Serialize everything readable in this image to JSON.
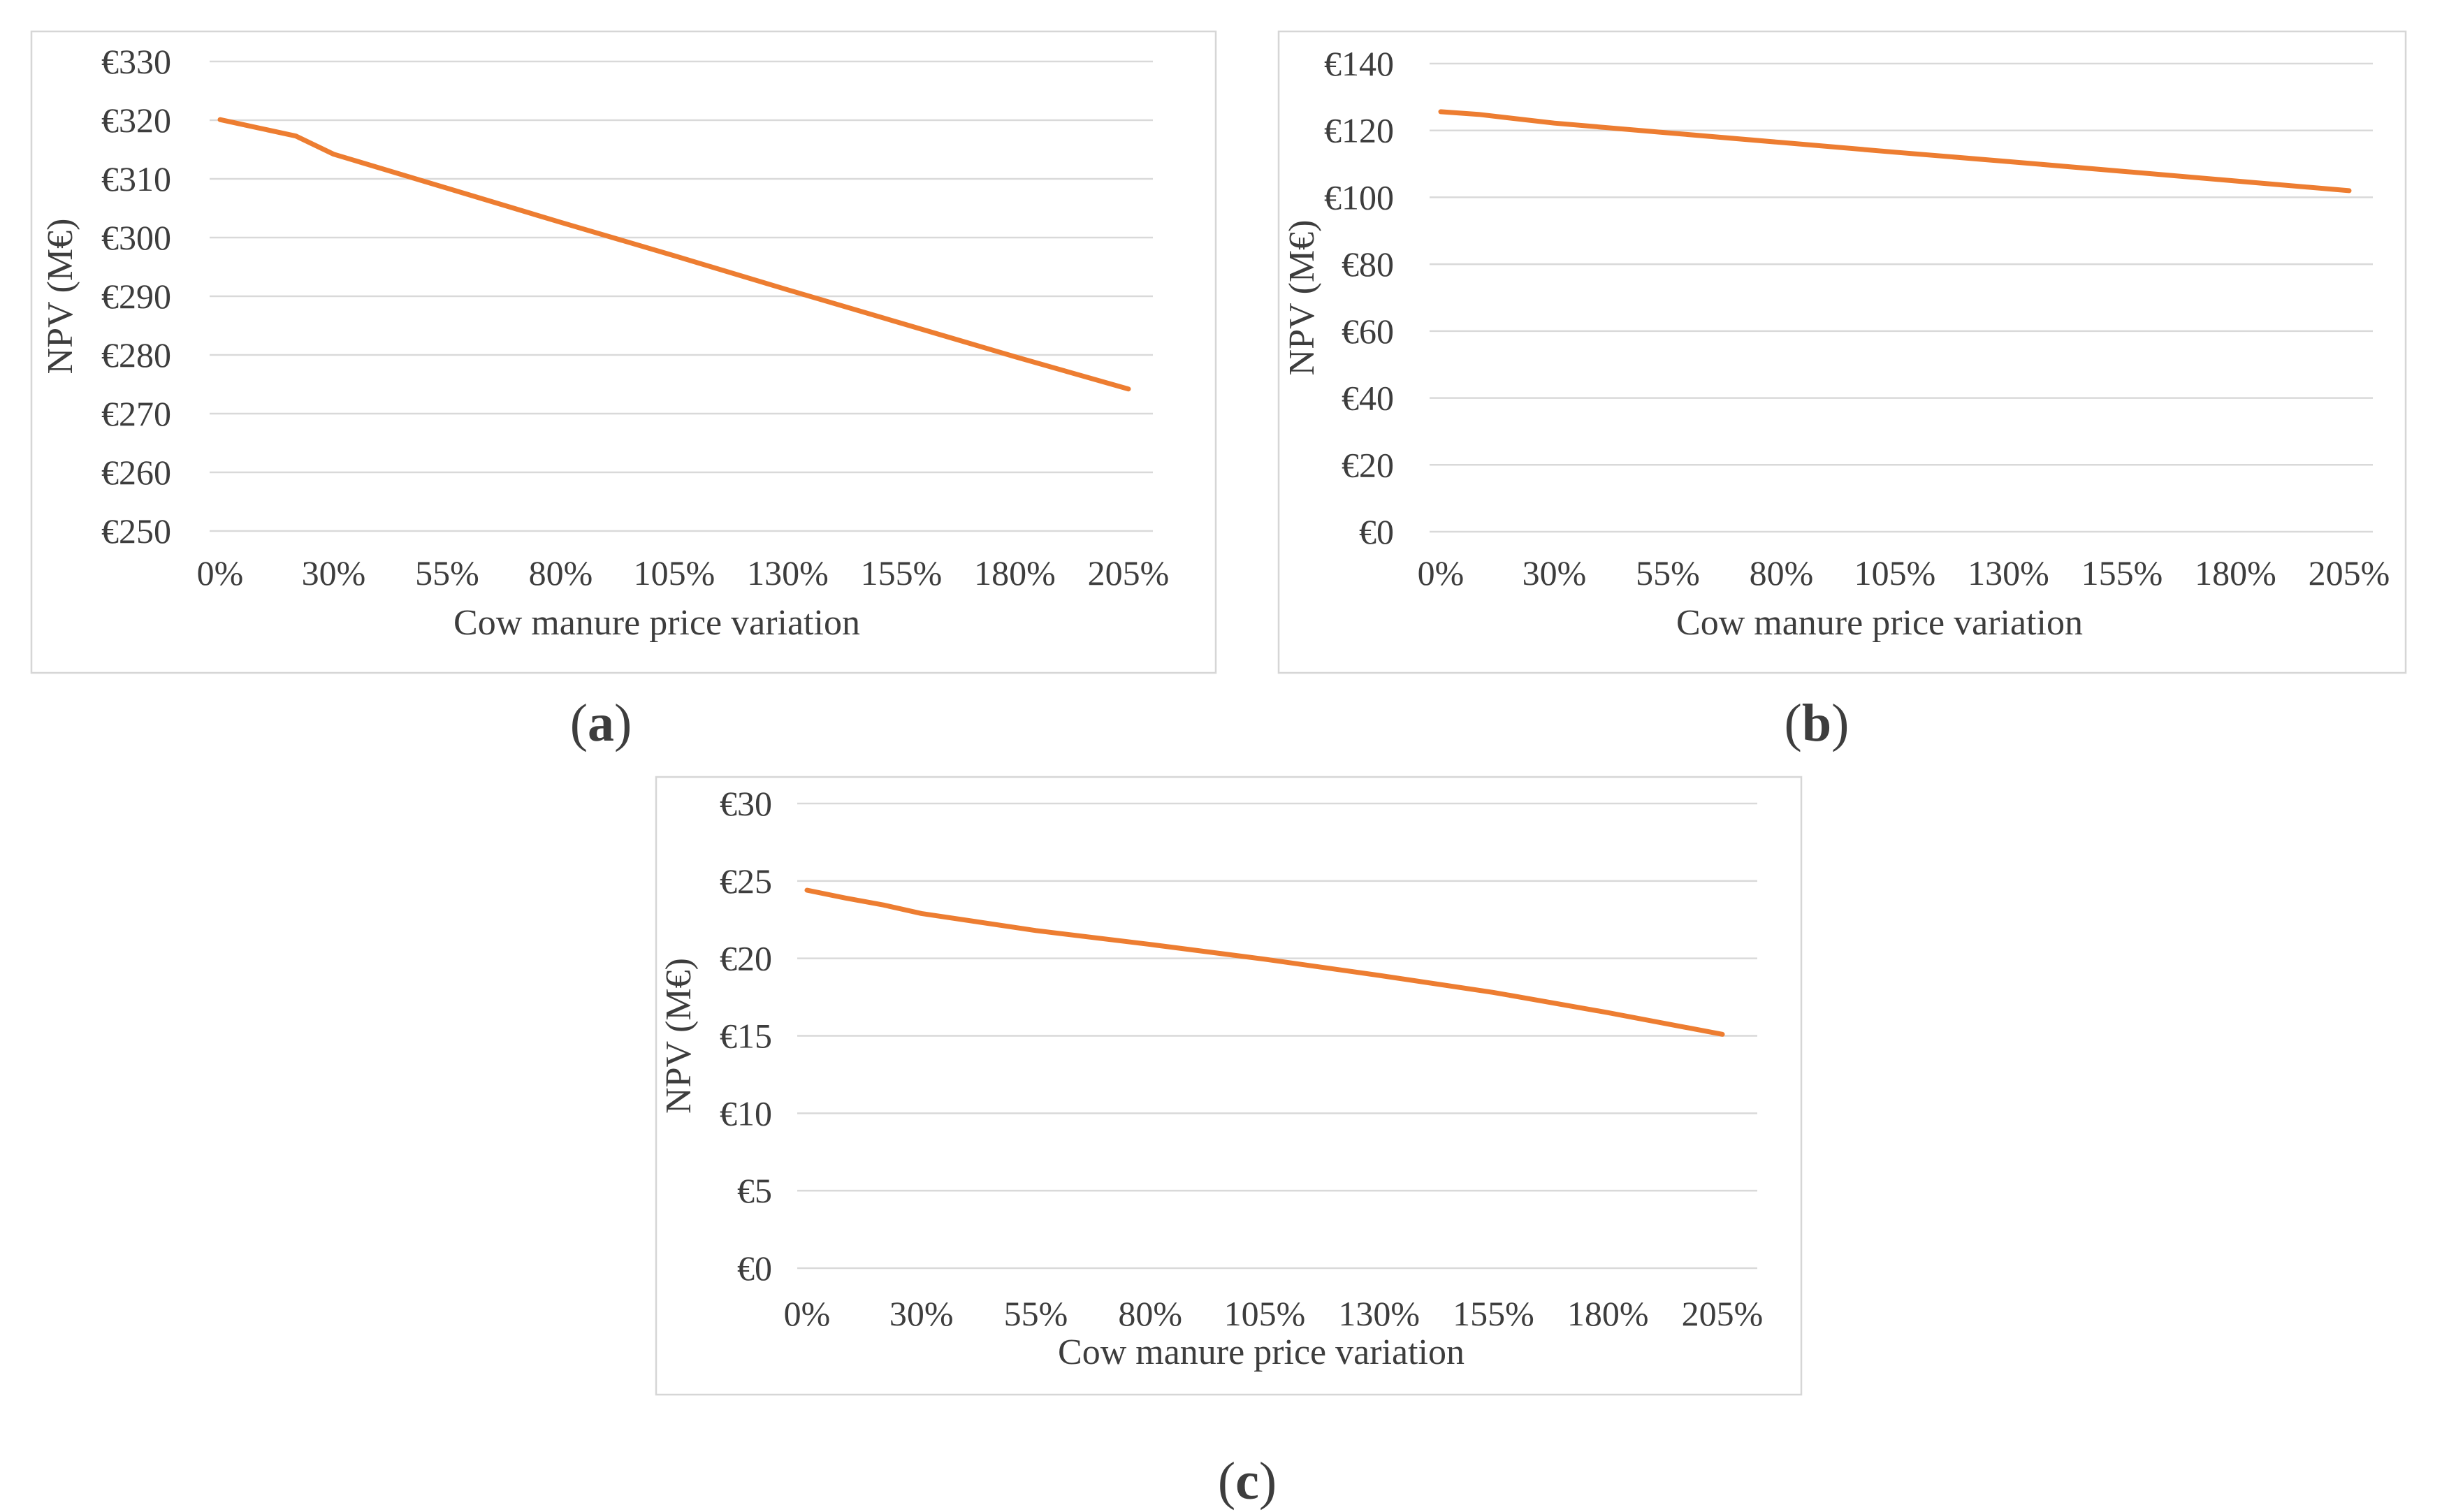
{
  "figure": {
    "caption_open": "(",
    "caption_close": ")"
  },
  "chart_data": [
    {
      "id": "a",
      "type": "line",
      "caption": "(a)",
      "caption_letter": "a",
      "xlabel": "Cow manure price variation",
      "ylabel": "NPV (M€)",
      "x_tick_labels": [
        "0%",
        "30%",
        "55%",
        "80%",
        "105%",
        "130%",
        "155%",
        "180%",
        "205%"
      ],
      "y_tick_labels": [
        "€330",
        "€320",
        "€310",
        "€300",
        "€290",
        "€280",
        "€270",
        "€260",
        "€250"
      ],
      "y_tick_values": [
        330,
        320,
        310,
        300,
        290,
        280,
        270,
        260,
        250
      ],
      "ylim": [
        250,
        330
      ],
      "grid": true,
      "legend": null,
      "series": [
        {
          "name": "NPV (M€)",
          "color": "#ED7D31",
          "x_percent": [
            0,
            5,
            15,
            30,
            55,
            80,
            105,
            130,
            155,
            180,
            205
          ],
          "x_pos_frac": [
            0,
            0.333,
            0.667,
            1,
            2,
            3,
            4,
            5,
            6,
            7,
            8
          ],
          "values": [
            320.1,
            318.7,
            317.3,
            314.2,
            308.4,
            302.6,
            296.9,
            291.1,
            285.4,
            279.7,
            274.2
          ]
        }
      ]
    },
    {
      "id": "b",
      "type": "line",
      "caption": "(b)",
      "caption_letter": "b",
      "xlabel": "Cow manure price variation",
      "ylabel": "NPV (M€)",
      "x_tick_labels": [
        "0%",
        "30%",
        "55%",
        "80%",
        "105%",
        "130%",
        "155%",
        "180%",
        "205%"
      ],
      "y_tick_labels": [
        "€140",
        "€120",
        "€100",
        "€80",
        "€60",
        "€40",
        "€20",
        "€0"
      ],
      "y_tick_values": [
        140,
        120,
        100,
        80,
        60,
        40,
        20,
        0
      ],
      "ylim": [
        0,
        140
      ],
      "grid": true,
      "legend": null,
      "series": [
        {
          "name": "NPV (M€)",
          "color": "#ED7D31",
          "x_percent": [
            0,
            5,
            15,
            30,
            55,
            80,
            105,
            130,
            155,
            180,
            205
          ],
          "x_pos_frac": [
            0,
            0.333,
            0.667,
            1,
            2,
            3,
            4,
            5,
            6,
            7,
            8
          ],
          "values": [
            125.6,
            124.8,
            123.5,
            122.2,
            119.3,
            116.4,
            113.5,
            110.7,
            107.8,
            104.9,
            102.0
          ]
        }
      ]
    },
    {
      "id": "c",
      "type": "line",
      "caption": "(c)",
      "caption_letter": "c",
      "xlabel": "Cow manure price variation",
      "ylabel": "NPV (M€)",
      "x_tick_labels": [
        "0%",
        "30%",
        "55%",
        "80%",
        "105%",
        "130%",
        "155%",
        "180%",
        "205%"
      ],
      "y_tick_labels": [
        "€30",
        "€25",
        "€20",
        "€15",
        "€10",
        "€5",
        "€0"
      ],
      "y_tick_values": [
        30,
        25,
        20,
        15,
        10,
        5,
        0
      ],
      "ylim": [
        0,
        30
      ],
      "grid": true,
      "legend": null,
      "series": [
        {
          "name": "NPV (M€)",
          "color": "#ED7D31",
          "x_percent": [
            0,
            5,
            15,
            30,
            55,
            80,
            105,
            130,
            155,
            180,
            205
          ],
          "x_pos_frac": [
            0,
            0.333,
            0.667,
            1,
            2,
            3,
            4,
            5,
            6,
            7,
            8
          ],
          "values": [
            24.4,
            23.9,
            23.45,
            22.9,
            21.8,
            20.9,
            19.95,
            18.9,
            17.8,
            16.5,
            15.1
          ]
        }
      ]
    }
  ]
}
